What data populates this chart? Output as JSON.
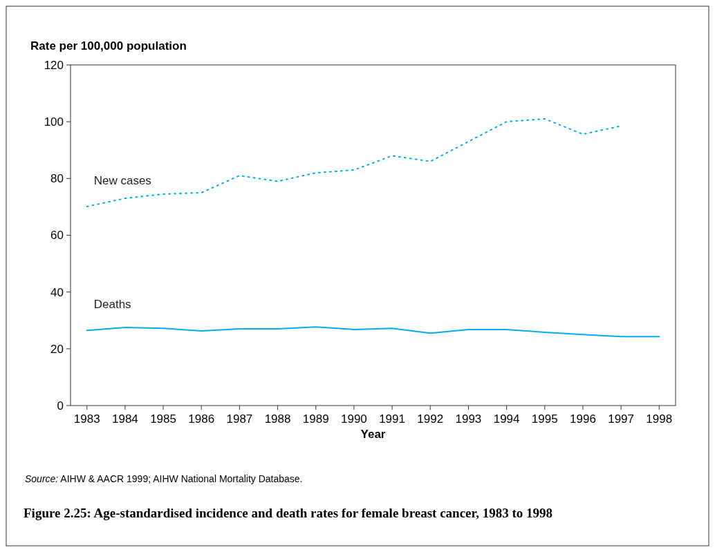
{
  "chart_data": {
    "type": "line",
    "title": "Figure 2.25: Age-standardised incidence and death rates for female breast cancer, 1983 to 1998",
    "xlabel": "Year",
    "ylabel": "Rate per 100,000 population",
    "annotations": [
      "Source: AIHW & AACR 1999; AIHW National Mortality Database."
    ],
    "categories": [
      "1983",
      "1984",
      "1985",
      "1986",
      "1987",
      "1988",
      "1989",
      "1990",
      "1991",
      "1992",
      "1993",
      "1994",
      "1995",
      "1996",
      "1997",
      "1998"
    ],
    "series": [
      {
        "name": "New cases",
        "color": "#00aeef",
        "line_style": "dotted",
        "values": [
          70.1,
          73,
          74.5,
          75,
          81,
          79,
          82,
          83,
          88,
          86,
          93,
          100,
          101,
          95.6,
          98.5,
          null
        ]
      },
      {
        "name": "Deaths",
        "color": "#00aeef",
        "line_style": "solid",
        "values": [
          26.5,
          27.5,
          27.2,
          26.3,
          27,
          27,
          27.7,
          26.8,
          27.2,
          25.5,
          26.8,
          26.8,
          25.8,
          25,
          24.3,
          24.3
        ]
      }
    ],
    "ylim": [
      0,
      120
    ],
    "yticks": [
      0,
      20,
      40,
      60,
      80,
      100,
      120
    ],
    "legend": false,
    "grid": false
  }
}
